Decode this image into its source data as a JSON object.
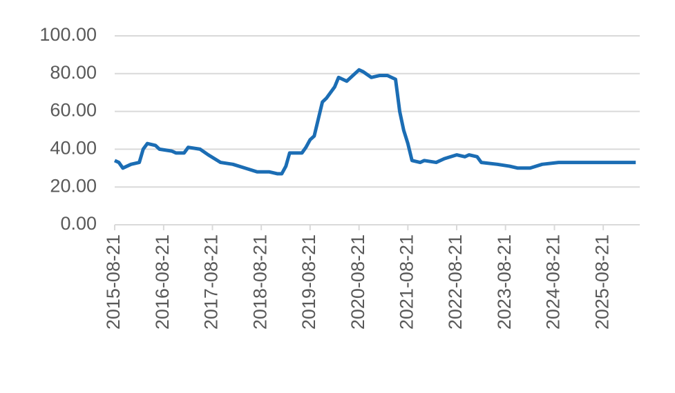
{
  "chart_data": {
    "type": "line",
    "x": [
      "2015-08-21",
      "2015-09-21",
      "2015-10-21",
      "2015-12-21",
      "2016-02-21",
      "2016-03-21",
      "2016-04-21",
      "2016-06-21",
      "2016-07-21",
      "2016-10-21",
      "2016-11-21",
      "2017-01-21",
      "2017-02-21",
      "2017-05-21",
      "2017-07-21",
      "2017-10-21",
      "2018-01-21",
      "2018-04-21",
      "2018-07-21",
      "2018-10-21",
      "2018-12-21",
      "2019-01-21",
      "2019-02-21",
      "2019-03-21",
      "2019-06-21",
      "2019-07-21",
      "2019-08-21",
      "2019-09-21",
      "2019-11-21",
      "2019-12-21",
      "2020-02-21",
      "2020-03-21",
      "2020-05-21",
      "2020-07-21",
      "2020-08-21",
      "2020-09-21",
      "2020-11-21",
      "2021-01-21",
      "2021-03-21",
      "2021-05-21",
      "2021-06-21",
      "2021-07-21",
      "2021-08-21",
      "2021-09-21",
      "2021-11-21",
      "2021-12-21",
      "2022-03-21",
      "2022-05-21",
      "2022-08-21",
      "2022-10-21",
      "2022-11-21",
      "2023-01-21",
      "2023-02-21",
      "2023-06-21",
      "2023-09-21",
      "2023-11-21",
      "2024-02-21",
      "2024-05-21",
      "2024-09-21",
      "2025-04-21",
      "2025-12-21",
      "2026-04-21"
    ],
    "series": [
      {
        "color": "#1b6db4",
        "values": [
          34,
          33,
          30,
          32,
          33,
          40,
          43,
          42,
          40,
          39,
          38,
          38,
          41,
          40,
          37,
          33,
          32,
          30,
          28,
          28,
          27,
          27,
          31,
          38,
          38,
          41,
          45,
          47,
          65,
          67,
          73,
          78,
          76,
          80,
          82,
          81,
          78,
          79,
          79,
          77,
          60,
          50,
          43,
          34,
          33,
          34,
          33,
          35,
          37,
          36,
          37,
          36,
          33,
          32,
          31,
          30,
          30,
          32,
          33,
          33,
          33,
          33
        ]
      }
    ],
    "xlim": [
      "2015-08-21",
      "2026-05-21"
    ],
    "xticks": [
      "2015-08-21",
      "2016-08-21",
      "2017-08-21",
      "2018-08-21",
      "2019-08-21",
      "2020-08-21",
      "2021-08-21",
      "2022-08-21",
      "2023-08-21",
      "2024-08-21",
      "2025-08-21"
    ],
    "ylim": [
      0,
      100
    ],
    "yticks": [
      {
        "value": 0,
        "label": "0.00"
      },
      {
        "value": 20,
        "label": "20.00"
      },
      {
        "value": 40,
        "label": "40.00"
      },
      {
        "value": 60,
        "label": "60.00"
      },
      {
        "value": 80,
        "label": "80.00"
      },
      {
        "value": 100,
        "label": "100.00"
      }
    ],
    "grid": true
  }
}
